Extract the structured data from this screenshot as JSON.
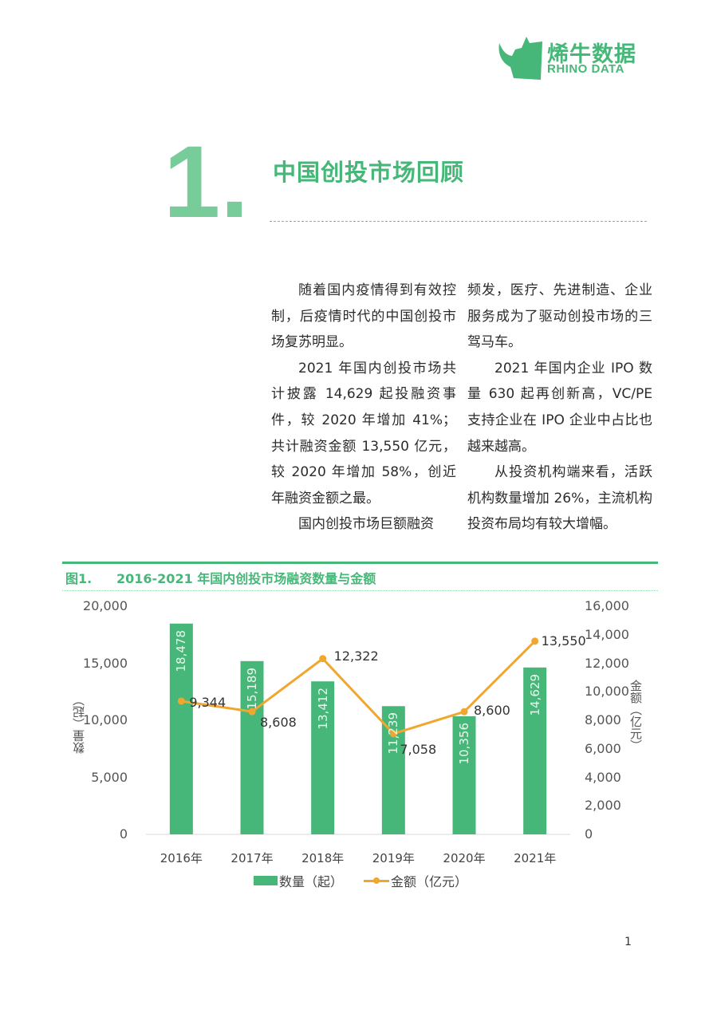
{
  "logo": {
    "name_cn": "烯牛数据",
    "name_en": "RHINO DATA",
    "brand_color": "#47b779",
    "icon": "rhino-head-icon"
  },
  "section": {
    "number": "1.",
    "title": "中国创投市场回顾"
  },
  "body": {
    "left_column": [
      {
        "text": "随着国内疫情得到有效控制，后疫情时代的中国创投市场复苏明显。",
        "indent": true
      },
      {
        "text": "2021 年国内创投市场共计披露 14,629 起投融资事件，较 2020 年增加 41%；共计融资金额 13,550 亿元，较 2020 年增加 58%，创近年融资金额之最。",
        "indent": true
      },
      {
        "text": "国内创投市场巨额融资",
        "indent": true
      }
    ],
    "right_column": [
      {
        "text": "频发，医疗、先进制造、企业服务成为了驱动创投市场的三驾马车。",
        "indent": false
      },
      {
        "text": "2021 年国内企业 IPO 数量 630 起再创新高，VC/PE 支持企业在 IPO 企业中占比也越来越高。",
        "indent": true
      },
      {
        "text": "从投资机构端来看，活跃机构数量增加 26%，主流机构投资布局均有较大增幅。",
        "indent": true
      }
    ]
  },
  "figure": {
    "number": "图1.",
    "title": "2016-2021 年国内创投市场融资数量与金额"
  },
  "chart_data": {
    "type": "bar",
    "title": "2016-2021 年国内创投市场融资数量与金额",
    "categories": [
      "2016年",
      "2017年",
      "2018年",
      "2019年",
      "2020年",
      "2021年"
    ],
    "series": [
      {
        "name": "数量（起）",
        "type": "bar",
        "axis": "left",
        "color": "#47b779",
        "values": [
          18478,
          15189,
          13412,
          11239,
          10356,
          14629
        ],
        "labels": [
          "18,478",
          "15,189",
          "13,412",
          "11,239",
          "10,356",
          "14,629"
        ]
      },
      {
        "name": "金额（亿元）",
        "type": "line",
        "axis": "right",
        "color": "#f0a72f",
        "values": [
          9344,
          8608,
          12322,
          7058,
          8600,
          13550
        ],
        "labels": [
          "9,344",
          "8,608",
          "12,322",
          "7,058",
          "8,600",
          "13,550"
        ]
      }
    ],
    "ylabel": "数量（起）",
    "ylabel_right": "金额（亿元）",
    "ylim": [
      0,
      20000
    ],
    "ylim_right": [
      0,
      16000
    ],
    "yticks": [
      "0",
      "5,000",
      "10,000",
      "15,000",
      "20,000"
    ],
    "yticks_right": [
      "0",
      "2,000",
      "4,000",
      "6,000",
      "8,000",
      "10,000",
      "12,000",
      "14,000",
      "16,000"
    ],
    "grid": false,
    "legend_position": "bottom"
  },
  "page_number": "1"
}
